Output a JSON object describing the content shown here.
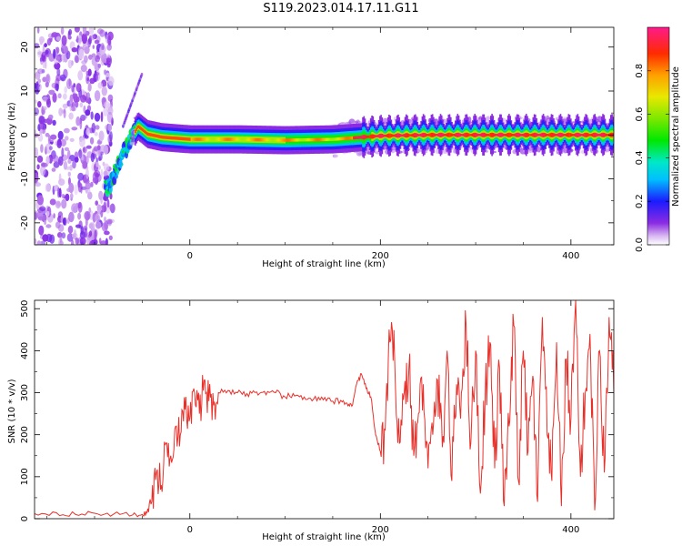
{
  "figure_title": "S119.2023.014.17.11.G11",
  "chart_data": [
    {
      "type": "heatmap",
      "xlabel": "Height of straight line (km)",
      "ylabel": "Frequency (Hz)",
      "xlim": [
        -163,
        445
      ],
      "ylim": [
        -25,
        24.5
      ],
      "xticks": [
        0,
        200,
        400
      ],
      "yticks": [
        -20,
        -10,
        0,
        10,
        20
      ],
      "colorbar": {
        "label": "Normalized spectral amplitude",
        "range": [
          0,
          1
        ],
        "ticks": [
          0.0,
          0.2,
          0.4,
          0.6,
          0.8
        ]
      },
      "ridge": {
        "description_points_x": [
          -85,
          -75,
          -65,
          -55,
          -45,
          -30,
          0,
          50,
          100,
          150,
          200,
          250,
          300,
          350,
          400,
          445
        ],
        "description_points_freq": [
          -12,
          -7,
          -2,
          2,
          0.2,
          -0.5,
          -1,
          -1,
          -1.2,
          -1,
          -0.2,
          0,
          0,
          0,
          0,
          0
        ]
      }
    },
    {
      "type": "line",
      "xlabel": "Height of straight line (km)",
      "ylabel": "SNR (10 * v/v)",
      "xlim": [
        -163,
        445
      ],
      "ylim": [
        0,
        520
      ],
      "xticks": [
        0,
        200,
        400
      ],
      "yticks": [
        0,
        100,
        200,
        300,
        400,
        500
      ],
      "color": "#e8302a",
      "x": [
        -163,
        -140,
        -120,
        -100,
        -80,
        -60,
        -50,
        -45,
        -40,
        -35,
        -30,
        -25,
        -20,
        -15,
        -10,
        -5,
        0,
        5,
        10,
        15,
        20,
        25,
        30,
        40,
        50,
        60,
        70,
        80,
        90,
        100,
        110,
        120,
        130,
        140,
        150,
        160,
        165,
        170,
        175,
        180,
        185,
        190,
        195,
        200,
        205,
        210,
        215,
        220,
        225,
        230,
        235,
        240,
        245,
        250,
        255,
        260,
        265,
        270,
        275,
        280,
        285,
        290,
        295,
        300,
        305,
        310,
        315,
        320,
        325,
        330,
        335,
        340,
        345,
        350,
        355,
        360,
        365,
        370,
        375,
        380,
        385,
        390,
        395,
        400,
        405,
        410,
        415,
        420,
        425,
        430,
        435,
        440,
        445
      ],
      "y": [
        12,
        14,
        10,
        13,
        11,
        9,
        10,
        14,
        40,
        110,
        80,
        180,
        150,
        220,
        200,
        260,
        240,
        300,
        250,
        330,
        280,
        270,
        300,
        305,
        300,
        298,
        302,
        295,
        300,
        290,
        292,
        290,
        285,
        283,
        280,
        278,
        275,
        268,
        320,
        345,
        310,
        290,
        200,
        160,
        210,
        420,
        380,
        180,
        300,
        360,
        150,
        250,
        320,
        120,
        200,
        330,
        170,
        400,
        90,
        320,
        300,
        460,
        180,
        400,
        60,
        300,
        420,
        120,
        360,
        30,
        220,
        460,
        90,
        400,
        160,
        340,
        40,
        480,
        200,
        90,
        420,
        30,
        380,
        240,
        520,
        100,
        300,
        440,
        20,
        400,
        110,
        480,
        300
      ]
    }
  ]
}
